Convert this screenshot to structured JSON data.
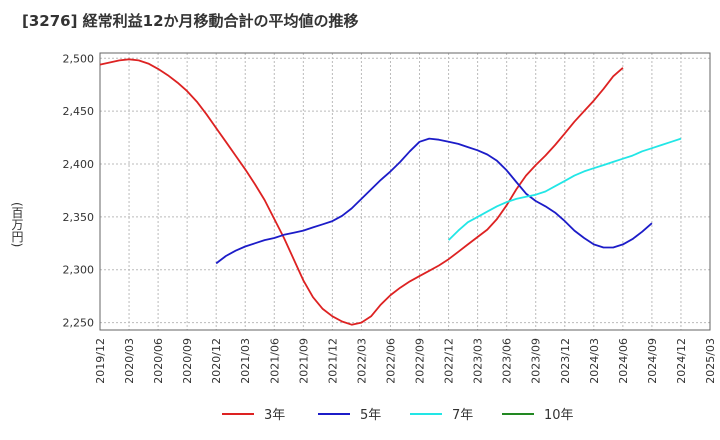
{
  "chart_data": {
    "type": "line",
    "title": "[3276]  経常利益12か月移動合計の平均値の推移",
    "ylabel": "(百万円)",
    "xlabel": "",
    "ylim": [
      2243,
      2505
    ],
    "yticks": [
      2250,
      2300,
      2350,
      2400,
      2450,
      2500
    ],
    "ytick_labels": [
      "2,250",
      "2,300",
      "2,350",
      "2,400",
      "2,450",
      "2,500"
    ],
    "xtick_labels": [
      "2019/12",
      "2020/03",
      "2020/06",
      "2020/09",
      "2020/12",
      "2021/03",
      "2021/06",
      "2021/09",
      "2021/12",
      "2022/03",
      "2022/06",
      "2022/09",
      "2022/12",
      "2023/03",
      "2023/06",
      "2023/09",
      "2023/12",
      "2024/03",
      "2024/06",
      "2024/09",
      "2024/12",
      "2025/03"
    ],
    "x_start": "2019/12",
    "series": [
      {
        "name": "3年",
        "color": "#dd2222",
        "start_index": 0,
        "values": [
          2494,
          2496,
          2498,
          2499,
          2498,
          2495,
          2490,
          2484,
          2477,
          2469,
          2459,
          2447,
          2434,
          2421,
          2408,
          2395,
          2381,
          2366,
          2348,
          2330,
          2310,
          2290,
          2274,
          2263,
          2256,
          2251,
          2248,
          2250,
          2256,
          2267,
          2276,
          2283,
          2289,
          2294,
          2299,
          2304,
          2310,
          2317,
          2324,
          2331,
          2338,
          2348,
          2361,
          2376,
          2389,
          2399,
          2408,
          2418,
          2429,
          2440,
          2450,
          2460,
          2471,
          2483,
          2491
        ]
      },
      {
        "name": "5年",
        "color": "#1c1cc8",
        "start_index": 12,
        "values": [
          2306,
          2313,
          2318,
          2322,
          2325,
          2328,
          2330,
          2333,
          2335,
          2337,
          2340,
          2343,
          2346,
          2351,
          2358,
          2367,
          2376,
          2385,
          2393,
          2402,
          2412,
          2421,
          2424,
          2423,
          2421,
          2419,
          2416,
          2413,
          2409,
          2403,
          2394,
          2383,
          2372,
          2365,
          2360,
          2354,
          2346,
          2337,
          2330,
          2324,
          2321,
          2321,
          2324,
          2329,
          2336,
          2344
        ]
      },
      {
        "name": "7年",
        "color": "#22e6e6",
        "start_index": 36,
        "values": [
          2328,
          2337,
          2345,
          2350,
          2355,
          2360,
          2364,
          2367,
          2369,
          2371,
          2374,
          2379,
          2384,
          2389,
          2393,
          2396,
          2399,
          2402,
          2405,
          2408,
          2412,
          2415,
          2418,
          2421,
          2424
        ]
      },
      {
        "name": "10年",
        "color": "#228822",
        "start_index": 0,
        "values": []
      }
    ]
  }
}
